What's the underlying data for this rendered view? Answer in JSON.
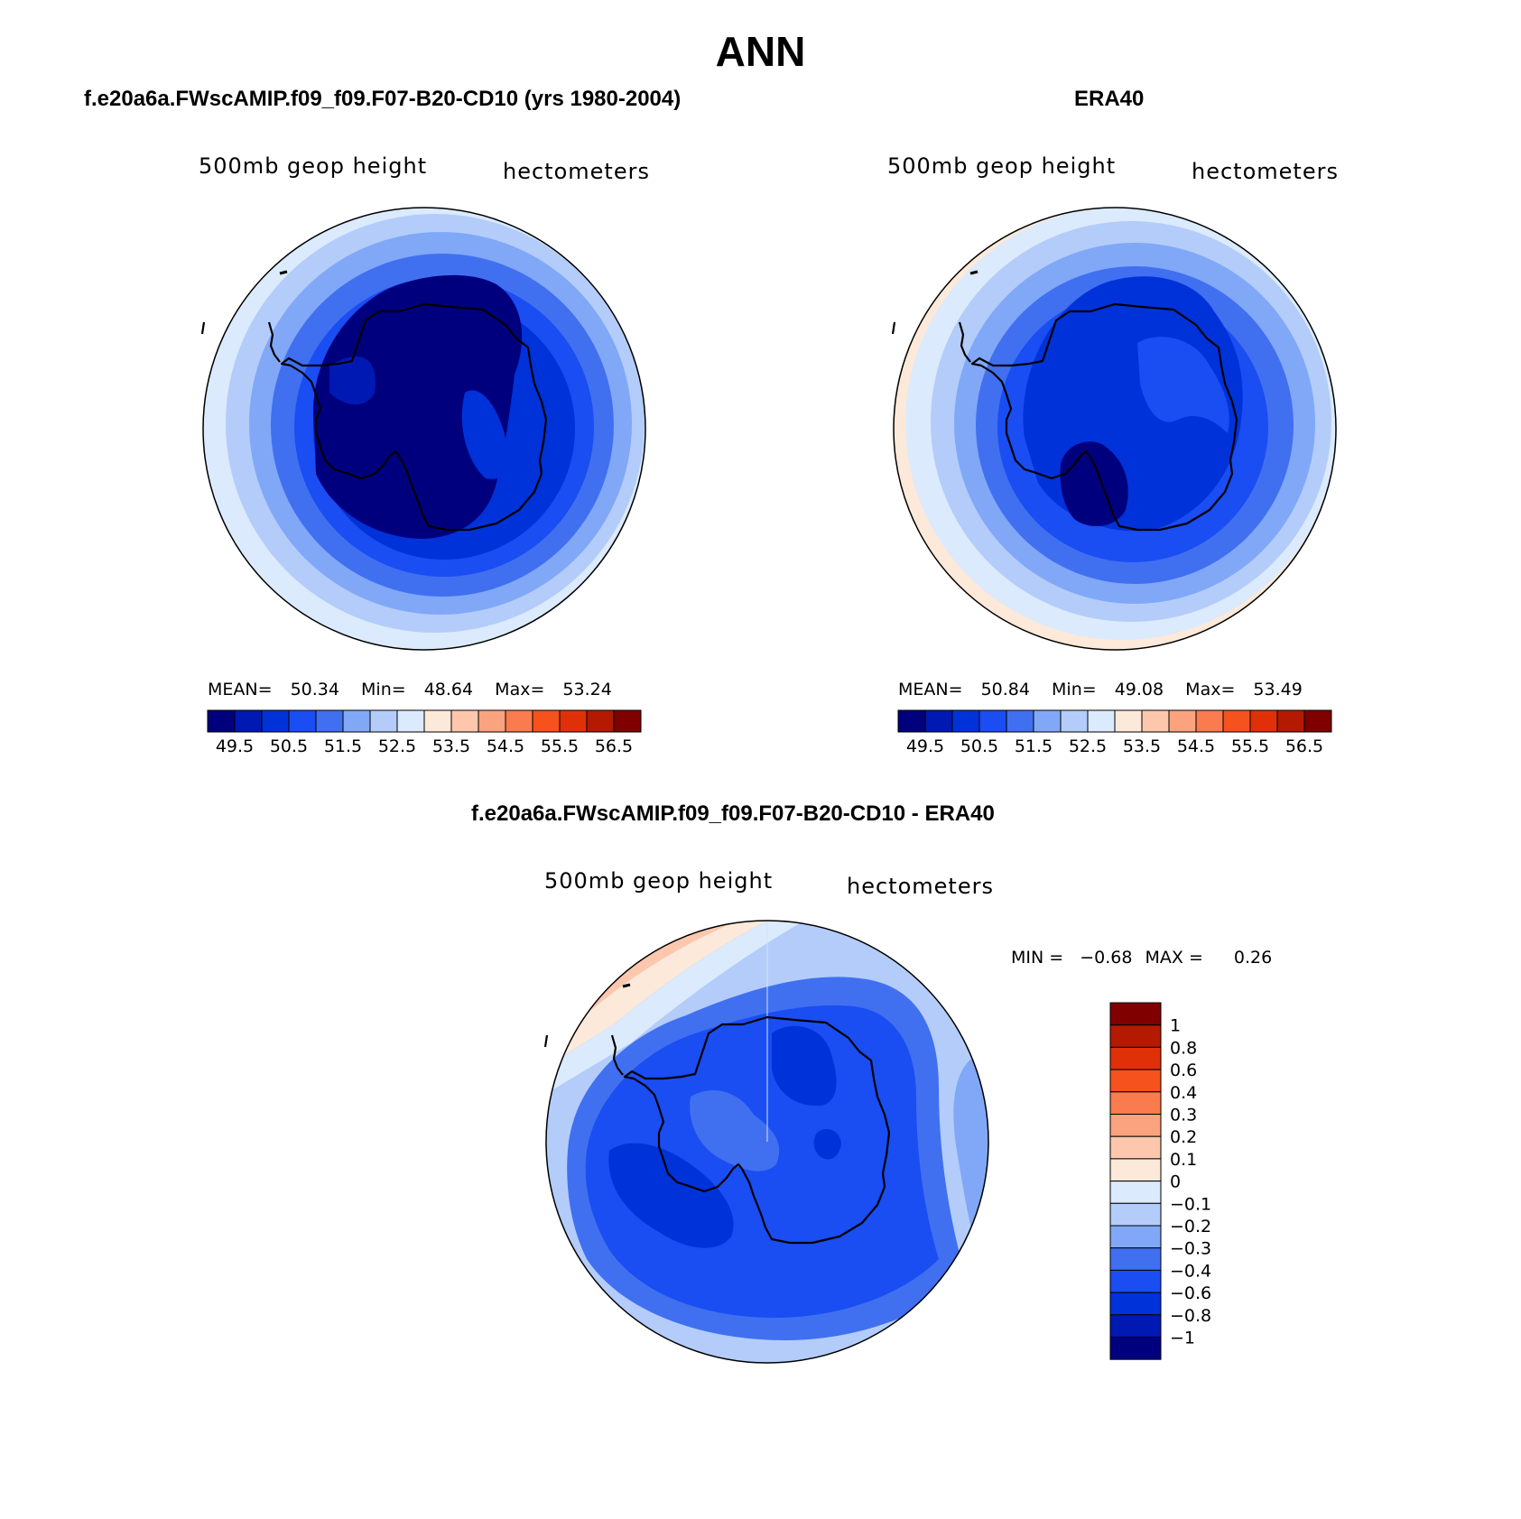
{
  "title": "ANN",
  "panels": [
    {
      "title": "f.e20a6a.FWscAMIP.f09_f09.F07-B20-CD10 (yrs 1980-2004)",
      "variable_label": "500mb geop height",
      "units_label": "hectometers",
      "stats": {
        "mean_label": "MEAN=",
        "mean": "50.34",
        "min_label": "Min=",
        "min": "48.64",
        "max_label": "Max=",
        "max": "53.24"
      }
    },
    {
      "title": "ERA40",
      "variable_label": "500mb geop height",
      "units_label": "hectometers",
      "stats": {
        "mean_label": "MEAN=",
        "mean": "50.84",
        "min_label": "Min=",
        "min": "49.08",
        "max_label": "Max=",
        "max": "53.49"
      }
    },
    {
      "title": "f.e20a6a.FWscAMIP.f09_f09.F07-B20-CD10 - ERA40",
      "variable_label": "500mb geop height",
      "units_label": "hectometers",
      "stats": {
        "min_label": "MIN =",
        "min": "−0.68",
        "max_label": "MAX =",
        "max": "0.26"
      }
    }
  ],
  "colorbar_main": {
    "colors": [
      "#00007f",
      "#0019b3",
      "#0032d9",
      "#1a4df2",
      "#4070f0",
      "#80a8f7",
      "#b3ccfa",
      "#dbeafc",
      "#fde9d9",
      "#fdc7ad",
      "#fba27e",
      "#fa7b4d",
      "#f5521e",
      "#e03008",
      "#b31a00",
      "#800000"
    ],
    "labels": [
      "49.5",
      "50.5",
      "51.5",
      "52.5",
      "53.5",
      "54.5",
      "55.5",
      "56.5"
    ]
  },
  "colorbar_diff": {
    "colors_top_to_bottom": [
      "#800000",
      "#b31a00",
      "#e03008",
      "#f5521e",
      "#fa7b4d",
      "#fba27e",
      "#fdc7ad",
      "#fde9d9",
      "#dbeafc",
      "#b3ccfa",
      "#80a8f7",
      "#4070f0",
      "#1a4df2",
      "#0032d9",
      "#0019b3",
      "#00007f"
    ],
    "labels_top_to_bottom": [
      "1",
      "0.8",
      "0.6",
      "0.4",
      "0.3",
      "0.2",
      "0.1",
      "0",
      "−0.1",
      "−0.2",
      "−0.3",
      "−0.4",
      "−0.6",
      "−0.8",
      "−1"
    ]
  }
}
